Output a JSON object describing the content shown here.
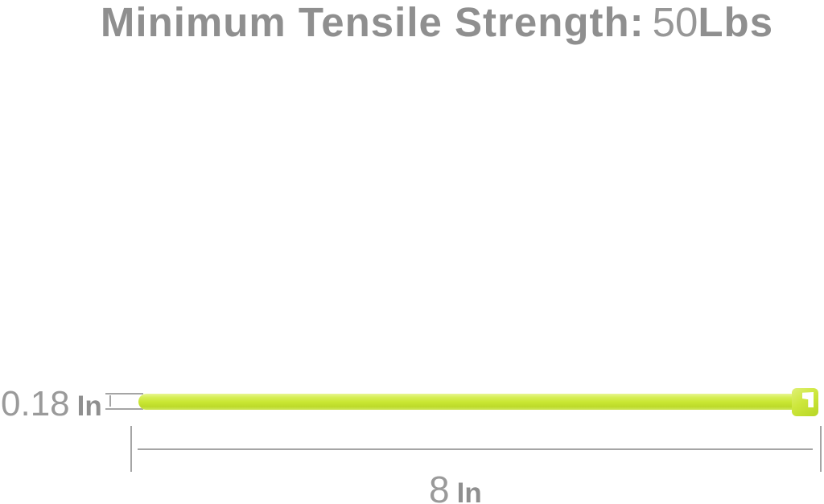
{
  "page": {
    "background": "#ffffff"
  },
  "title": {
    "label": "Minimum Tensile Strength:",
    "value": "50",
    "unit": "Lbs"
  },
  "dimensions": {
    "width": {
      "value": "0.18",
      "unit": "In"
    },
    "length": {
      "value": "8",
      "unit": "In"
    }
  },
  "product": {
    "name": "nylon cable zip tie",
    "body_color": "#cae734",
    "highlight_color": "#e9f694",
    "shadow_color": "#b7d626",
    "head_slot_color": "#ffffff"
  },
  "colors": {
    "title_gray": "#8f8f8f",
    "number_gray": "#9a9a9a",
    "dimension_line_gray": "#a5a5a5"
  }
}
